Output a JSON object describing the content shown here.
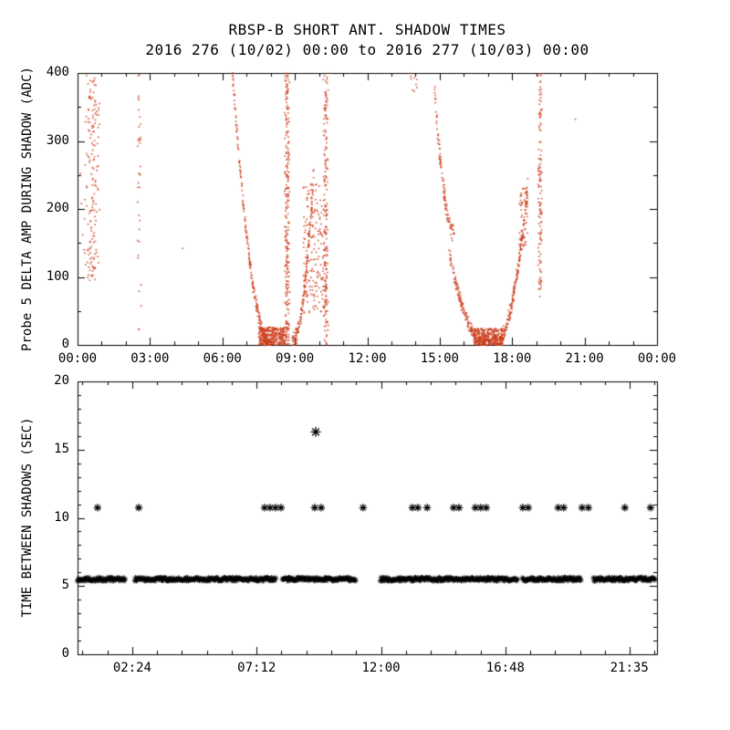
{
  "figure": {
    "background": "#ffffff",
    "axis_color": "#000000"
  },
  "chart_data": [
    {
      "type": "scatter",
      "panel": "top",
      "title": "RBSP-B SHORT ANT. SHADOW TIMES",
      "subtitle": "2016 276 (10/02) 00:00 to 2016 277 (10/03) 00:00",
      "xlabel": "",
      "ylabel": "Probe 5 DELTA AMP DURING SHADOW (ADC)",
      "xlim": [
        0,
        24
      ],
      "ylim": [
        0,
        400
      ],
      "x_ticks": {
        "values": [
          0,
          3,
          6,
          9,
          12,
          15,
          18,
          21,
          24
        ],
        "labels": [
          "00:00",
          "03:00",
          "06:00",
          "09:00",
          "12:00",
          "15:00",
          "18:00",
          "21:00",
          "00:00"
        ]
      },
      "y_ticks": {
        "values": [
          0,
          100,
          200,
          300,
          400
        ],
        "labels": [
          "0",
          "100",
          "200",
          "300",
          "400"
        ]
      },
      "x_minor_step": 1,
      "y_minor_step": 50,
      "grid": false,
      "point_color": "#cc3d1c",
      "point_size": 1.6,
      "clusters": [
        {
          "type": "column",
          "x": 0.62,
          "sx": 0.18,
          "y0": 95,
          "y1": 400,
          "n": 160,
          "seed": 1
        },
        {
          "type": "dots",
          "pts": [
            [
              0.12,
              252
            ],
            [
              0.16,
              208
            ],
            [
              0.21,
              162
            ],
            [
              0.26,
              140
            ],
            [
              0.33,
              118
            ],
            [
              0.45,
              103
            ]
          ],
          "seed": 2
        },
        {
          "type": "column",
          "x": 2.55,
          "sx": 0.05,
          "y0": 5,
          "y1": 398,
          "n": 36,
          "seed": 3
        },
        {
          "type": "dots",
          "pts": [
            [
              4.35,
              142
            ]
          ],
          "seed": 4
        },
        {
          "type": "parab",
          "xv": 8.02,
          "yv": 0,
          "amp": 400,
          "w": 1.6,
          "x0": 6.42,
          "x1": 8.02,
          "n": 240,
          "jx": 0.06,
          "jy": 14,
          "seed": 5
        },
        {
          "type": "band",
          "x0": 7.5,
          "x1": 8.62,
          "y0": 0,
          "y1": 26,
          "n": 340,
          "seed": 6
        },
        {
          "type": "column",
          "x": 8.68,
          "sx": 0.06,
          "y0": 0,
          "y1": 400,
          "n": 250,
          "seed": 7
        },
        {
          "type": "parab",
          "xv": 8.9,
          "yv": 4,
          "amp": 245,
          "w": 0.88,
          "x0": 8.9,
          "x1": 9.78,
          "n": 150,
          "jx": 0.05,
          "jy": 16,
          "seed": 8
        },
        {
          "type": "band",
          "x0": 9.35,
          "x1": 10.32,
          "y0": 45,
          "y1": 238,
          "n": 200,
          "seed": 9
        },
        {
          "type": "column",
          "x": 10.28,
          "sx": 0.06,
          "y0": 0,
          "y1": 400,
          "n": 170,
          "seed": 10
        },
        {
          "type": "band",
          "x0": 13.78,
          "x1": 14.06,
          "y0": 372,
          "y1": 400,
          "n": 9,
          "seed": 11
        },
        {
          "type": "parab",
          "xv": 15.62,
          "yv": 165,
          "amp": 235,
          "w": 0.88,
          "x0": 14.75,
          "x1": 15.62,
          "n": 110,
          "jx": 0.05,
          "jy": 16,
          "seed": 12
        },
        {
          "type": "parab",
          "xv": 16.92,
          "yv": 0,
          "amp": 132,
          "w": 1.5,
          "x0": 15.42,
          "x1": 16.92,
          "n": 180,
          "jx": 0.06,
          "jy": 12,
          "seed": 13
        },
        {
          "type": "band",
          "x0": 16.42,
          "x1": 17.62,
          "y0": 0,
          "y1": 24,
          "n": 340,
          "seed": 14
        },
        {
          "type": "parab",
          "xv": 17.32,
          "yv": 2,
          "amp": 228,
          "w": 1.32,
          "x0": 17.32,
          "x1": 18.64,
          "n": 220,
          "jx": 0.06,
          "jy": 15,
          "seed": 15
        },
        {
          "type": "band",
          "x0": 18.28,
          "x1": 18.64,
          "y0": 145,
          "y1": 232,
          "n": 55,
          "seed": 16
        },
        {
          "type": "column",
          "x": 19.16,
          "sx": 0.05,
          "y0": 70,
          "y1": 400,
          "n": 130,
          "seed": 17
        },
        {
          "type": "dots",
          "pts": [
            [
              20.62,
              332
            ]
          ],
          "seed": 18
        }
      ]
    },
    {
      "type": "scatter",
      "panel": "bottom",
      "marker": "asterisk",
      "marker_color": "#000000",
      "xlabel": "",
      "ylabel": "TIME BETWEEN SHADOWS (SEC)",
      "xlim": [
        0.29,
        22.65
      ],
      "ylim": [
        0,
        20
      ],
      "x_ticks": {
        "values": [
          2.4,
          7.2,
          12.0,
          16.8,
          21.5833
        ],
        "labels": [
          "02:24",
          "07:12",
          "12:00",
          "16:48",
          "21:35"
        ]
      },
      "y_ticks": {
        "values": [
          0,
          5,
          10,
          15,
          20
        ],
        "labels": [
          "0",
          "5",
          "10",
          "15",
          "20"
        ]
      },
      "x_minor_step": 0.96,
      "y_minor_step": 1,
      "grid": false,
      "band": {
        "y": 5.5,
        "y_jitter": 0.13,
        "step": 0.03,
        "segments": [
          [
            0.29,
            2.15
          ],
          [
            2.5,
            7.95
          ],
          [
            8.2,
            11.02
          ],
          [
            11.98,
            17.28
          ],
          [
            17.46,
            19.72
          ],
          [
            20.2,
            22.58
          ]
        ]
      },
      "repeat_points": {
        "y": 10.75,
        "x": [
          1.06,
          2.65,
          7.51,
          7.72,
          7.93,
          8.14,
          9.44,
          9.69,
          11.31,
          13.21,
          13.42,
          13.78,
          14.8,
          15.01,
          15.64,
          15.85,
          16.06,
          17.47,
          17.68,
          18.84,
          19.05,
          19.76,
          20.0,
          21.41,
          22.4
        ]
      },
      "outlier_points": [
        {
          "x": 9.48,
          "y": 16.3
        }
      ]
    }
  ]
}
